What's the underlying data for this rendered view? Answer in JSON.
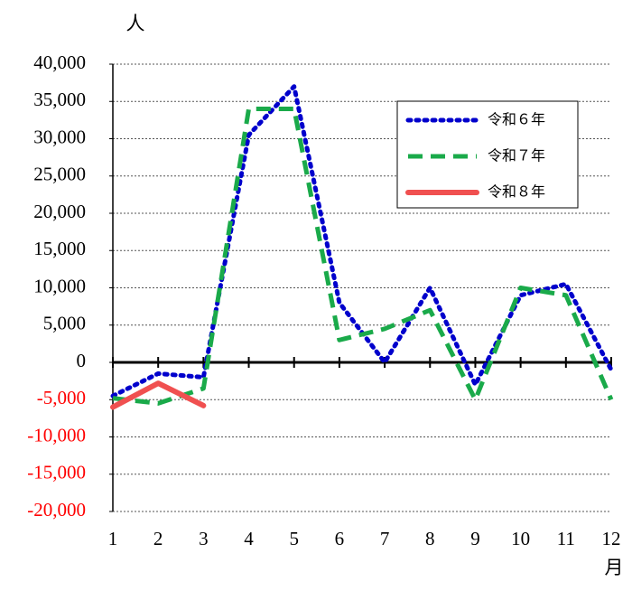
{
  "chart_data": {
    "type": "line",
    "y_label": "人",
    "x_label": "月",
    "x": [
      1,
      2,
      3,
      4,
      5,
      6,
      7,
      8,
      9,
      10,
      11,
      12
    ],
    "xlim": [
      1,
      12
    ],
    "xticks": [
      1,
      2,
      3,
      4,
      5,
      6,
      7,
      8,
      9,
      10,
      11,
      12
    ],
    "ylim": [
      -20000,
      40000
    ],
    "yticks": [
      {
        "value": -20000,
        "label": "-20,000"
      },
      {
        "value": -15000,
        "label": "-15,000"
      },
      {
        "value": -10000,
        "label": "-10,000"
      },
      {
        "value": -5000,
        "label": "-5,000"
      },
      0,
      {
        "value": 5000,
        "label": "5,000"
      },
      {
        "value": 10000,
        "label": "10,000"
      },
      {
        "value": 15000,
        "label": "15,000"
      },
      {
        "value": 20000,
        "label": "20,000"
      },
      {
        "value": 25000,
        "label": "25,000"
      },
      {
        "value": 30000,
        "label": "30,000"
      },
      {
        "value": 35000,
        "label": "35,000"
      },
      {
        "value": 40000,
        "label": "40,000"
      }
    ],
    "grid": true,
    "negative_tick_color": "#ff0000",
    "legend": "upper right",
    "series": [
      {
        "name": "令和６年",
        "color": "#0000cc",
        "style": "dotted",
        "values": [
          -4500,
          -1500,
          -2000,
          30500,
          37000,
          8000,
          0,
          10000,
          -3000,
          9000,
          10500,
          -1000
        ]
      },
      {
        "name": "令和７年",
        "color": "#1aaa4a",
        "style": "dashed",
        "values": [
          -4800,
          -5500,
          -3500,
          34000,
          34000,
          3000,
          4500,
          7000,
          -5000,
          10000,
          9000,
          -5000
        ]
      },
      {
        "name": "令和８年",
        "color": "#f05050",
        "style": "solid",
        "values": [
          -6000,
          -2800,
          -5800,
          null,
          null,
          null,
          null,
          null,
          null,
          null,
          null,
          null
        ]
      }
    ]
  }
}
